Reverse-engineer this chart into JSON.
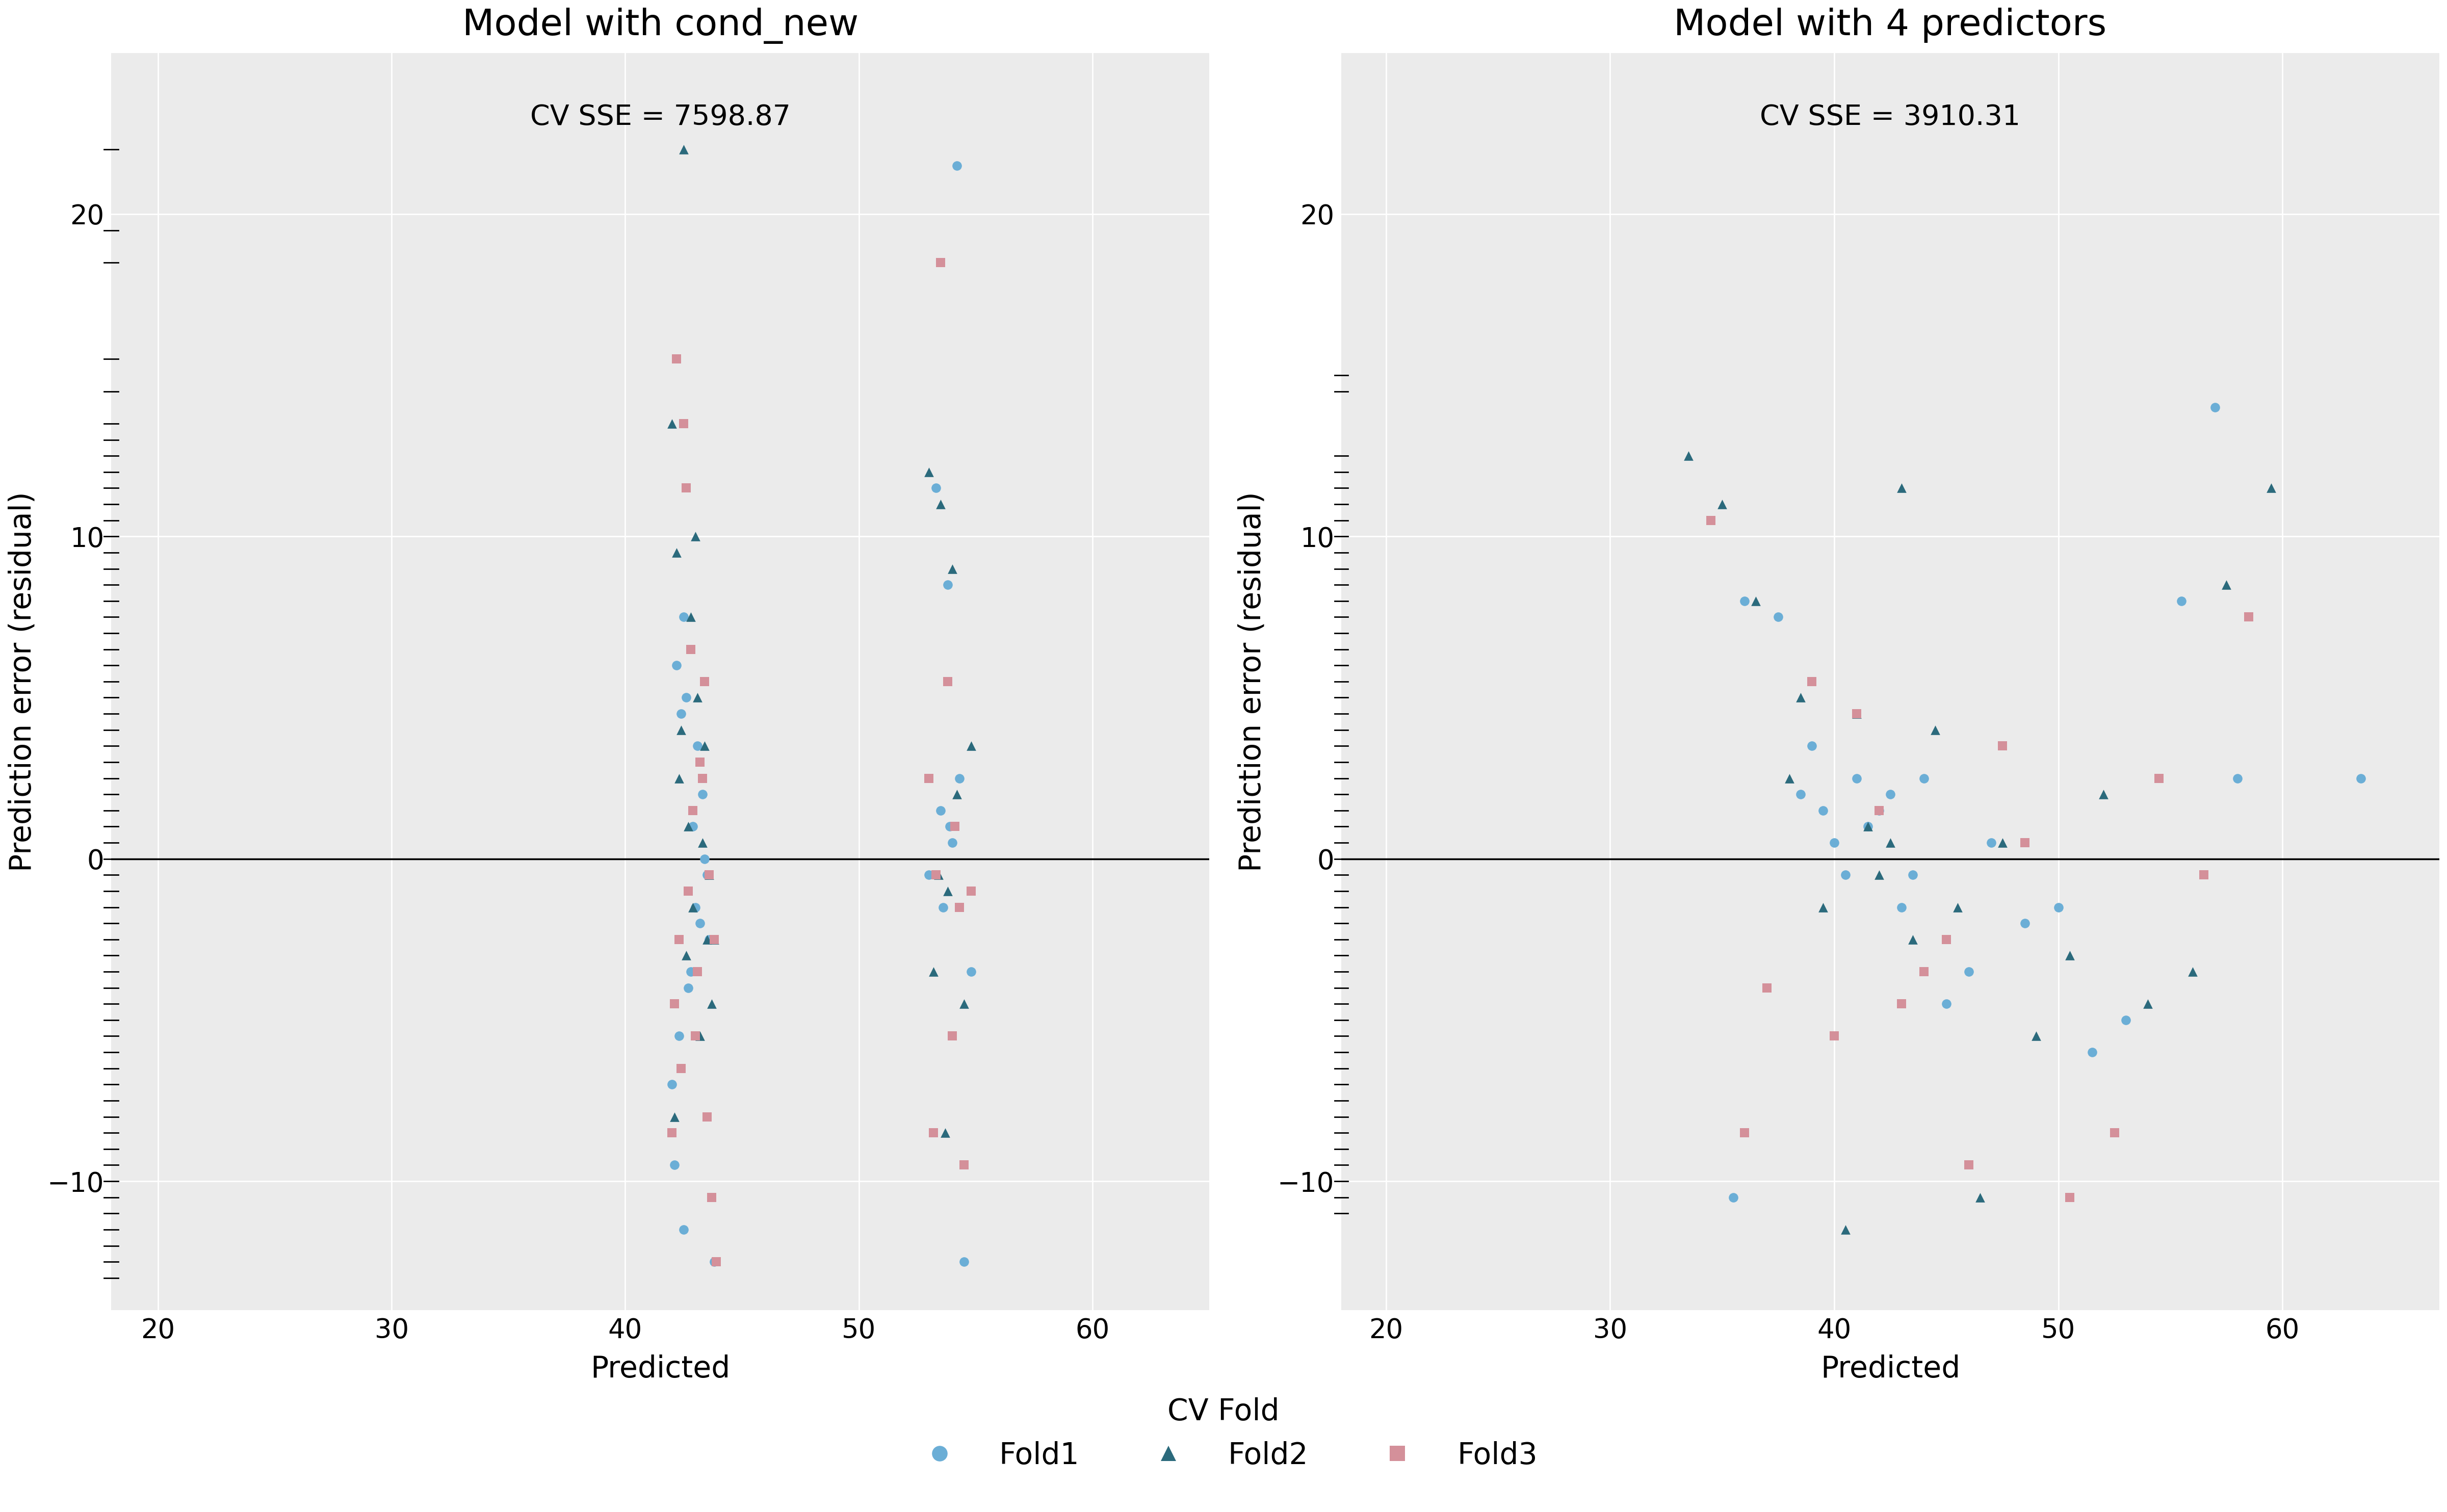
{
  "plot1_title": "Model with cond_new",
  "plot2_title": "Model with 4 predictors",
  "plot1_sse": "CV SSE = 7598.87",
  "plot2_sse": "CV SSE = 3910.31",
  "xlabel": "Predicted",
  "ylabel": "Prediction error (residual)",
  "fold_colors": {
    "Fold1": "#6BAED6",
    "Fold2": "#2B6A7C",
    "Fold3": "#D4909A"
  },
  "bg_color": "#EBEBEB",
  "grid_color": "#FFFFFF",
  "plot1": {
    "fold1_x": [
      42.5,
      42.8,
      43.1,
      42.3,
      42.9,
      43.2,
      42.6,
      43.0,
      42.4,
      42.7,
      43.3,
      43.5,
      42.2,
      42.0,
      43.4,
      42.1,
      43.6,
      42.5,
      43.8,
      53.5,
      54.2,
      53.8,
      54.0,
      53.3,
      54.5,
      53.6,
      54.3,
      53.9,
      54.8,
      53.0
    ],
    "fold1_y": [
      7.5,
      -3.5,
      3.5,
      -5.5,
      1.0,
      -2.0,
      5.0,
      -1.5,
      4.5,
      -4.0,
      2.0,
      -0.5,
      6.0,
      -7.0,
      0.0,
      -9.5,
      -2.5,
      -11.5,
      -12.5,
      1.5,
      21.5,
      8.5,
      0.5,
      11.5,
      -12.5,
      -1.5,
      2.5,
      1.0,
      -3.5,
      -0.5
    ],
    "fold2_x": [
      42.5,
      43.0,
      42.2,
      43.4,
      42.8,
      43.1,
      42.6,
      43.3,
      42.9,
      43.5,
      42.3,
      43.2,
      42.7,
      43.6,
      42.1,
      42.4,
      43.7,
      42.0,
      43.8,
      53.5,
      54.0,
      53.2,
      54.5,
      53.7,
      53.0,
      54.2,
      53.8,
      54.8,
      53.4
    ],
    "fold2_y": [
      22.0,
      10.0,
      9.5,
      3.5,
      7.5,
      5.0,
      -3.0,
      0.5,
      -1.5,
      -2.5,
      2.5,
      -5.5,
      1.0,
      -0.5,
      -8.0,
      4.0,
      -4.5,
      13.5,
      -2.5,
      11.0,
      9.0,
      -3.5,
      -4.5,
      -8.5,
      12.0,
      2.0,
      -1.0,
      3.5,
      -0.5
    ],
    "fold3_x": [
      42.5,
      42.2,
      43.0,
      42.8,
      43.3,
      43.5,
      42.6,
      43.1,
      42.3,
      43.8,
      42.9,
      43.4,
      42.7,
      43.2,
      42.1,
      42.4,
      43.6,
      42.0,
      43.7,
      43.9,
      53.5,
      54.0,
      53.2,
      54.5,
      53.8,
      53.3,
      54.3,
      53.0,
      54.8,
      54.1
    ],
    "fold3_y": [
      13.5,
      15.5,
      -5.5,
      6.5,
      2.5,
      -8.0,
      11.5,
      -3.5,
      -2.5,
      -2.5,
      1.5,
      5.5,
      -1.0,
      3.0,
      -4.5,
      -6.5,
      -0.5,
      -8.5,
      -10.5,
      -12.5,
      18.5,
      -5.5,
      -8.5,
      -9.5,
      5.5,
      -0.5,
      -1.5,
      2.5,
      -1.0,
      1.0
    ]
  },
  "plot2": {
    "fold1_x": [
      35.5,
      36.0,
      37.5,
      38.5,
      39.0,
      39.5,
      40.0,
      40.5,
      41.0,
      41.5,
      42.0,
      42.5,
      43.0,
      43.5,
      44.0,
      45.0,
      46.0,
      47.0,
      48.5,
      50.0,
      51.5,
      53.0,
      55.5,
      57.0,
      58.0,
      63.5
    ],
    "fold1_y": [
      -10.5,
      8.0,
      7.5,
      2.0,
      3.5,
      1.5,
      0.5,
      -0.5,
      2.5,
      1.0,
      1.5,
      2.0,
      -1.5,
      -0.5,
      2.5,
      -4.5,
      -3.5,
      0.5,
      -2.0,
      -1.5,
      -6.0,
      -5.0,
      8.0,
      14.0,
      2.5,
      2.5
    ],
    "fold2_x": [
      33.5,
      35.0,
      36.5,
      38.0,
      38.5,
      39.5,
      40.5,
      41.0,
      41.5,
      42.0,
      42.5,
      43.0,
      43.5,
      44.5,
      45.5,
      46.5,
      47.5,
      49.0,
      50.5,
      52.0,
      54.0,
      56.0,
      57.5,
      59.5
    ],
    "fold2_y": [
      12.5,
      11.0,
      8.0,
      2.5,
      5.0,
      -1.5,
      -11.5,
      4.5,
      1.0,
      -0.5,
      0.5,
      11.5,
      -2.5,
      4.0,
      -1.5,
      -10.5,
      0.5,
      -5.5,
      -3.0,
      2.0,
      -4.5,
      -3.5,
      8.5,
      11.5
    ],
    "fold3_x": [
      34.5,
      36.0,
      37.0,
      39.0,
      40.0,
      41.0,
      42.0,
      43.0,
      44.0,
      45.0,
      46.0,
      47.5,
      48.5,
      50.5,
      52.5,
      54.5,
      56.5,
      58.5
    ],
    "fold3_y": [
      10.5,
      -8.5,
      -4.0,
      5.5,
      -5.5,
      4.5,
      1.5,
      -4.5,
      -3.5,
      -2.5,
      -9.5,
      3.5,
      0.5,
      -10.5,
      -8.5,
      2.5,
      -0.5,
      7.5
    ]
  },
  "rug1_y": [
    22.0,
    19.5,
    18.5,
    15.5,
    14.5,
    13.5,
    13.0,
    12.5,
    12.0,
    11.5,
    11.0,
    10.5,
    10.0,
    9.5,
    9.0,
    8.5,
    8.0,
    7.5,
    7.0,
    6.5,
    6.0,
    5.5,
    5.0,
    4.5,
    4.0,
    3.5,
    3.0,
    2.5,
    2.0,
    1.5,
    1.0,
    0.5,
    0.0,
    -0.5,
    -1.0,
    -1.5,
    -2.0,
    -2.5,
    -3.0,
    -3.5,
    -4.0,
    -4.5,
    -5.0,
    -5.5,
    -6.0,
    -6.5,
    -7.0,
    -7.5,
    -8.0,
    -8.5,
    -9.0,
    -9.5,
    -10.0,
    -10.5,
    -11.0,
    -11.5,
    -12.0,
    -12.5,
    -13.0
  ],
  "rug2_y": [
    15.0,
    14.5,
    12.5,
    12.0,
    11.5,
    11.0,
    10.5,
    10.0,
    9.5,
    9.0,
    8.5,
    8.0,
    7.5,
    7.0,
    6.5,
    6.0,
    5.5,
    5.0,
    4.5,
    4.0,
    3.5,
    3.0,
    2.5,
    2.0,
    1.5,
    1.0,
    0.5,
    0.0,
    -0.5,
    -1.0,
    -1.5,
    -2.0,
    -2.5,
    -3.0,
    -3.5,
    -4.0,
    -4.5,
    -5.0,
    -5.5,
    -6.0,
    -6.5,
    -7.0,
    -7.5,
    -8.0,
    -8.5,
    -9.0,
    -9.5,
    -10.0,
    -10.5,
    -11.0
  ],
  "ylim": [
    -14,
    25
  ],
  "plot1_xlim": [
    18,
    65
  ],
  "plot2_xlim": [
    18,
    67
  ],
  "plot1_xticks": [
    20,
    30,
    40,
    50,
    60
  ],
  "plot2_xticks": [
    20,
    30,
    40,
    50,
    60
  ],
  "yticks": [
    -10,
    0,
    10,
    20
  ],
  "legend_title": "CV Fold",
  "title_fontsize": 52,
  "label_fontsize": 42,
  "tick_fontsize": 38,
  "legend_fontsize": 42,
  "sse_fontsize": 40
}
